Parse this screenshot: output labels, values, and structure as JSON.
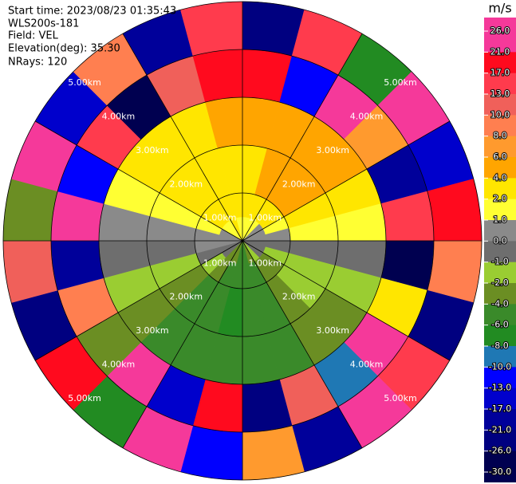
{
  "chart_data": {
    "type": "ppi",
    "header": [
      "Start time: 2023/08/23 01:35:43",
      "WLS200s-181",
      "Field: VEL",
      "Elevation(deg): 35.30",
      "NRays: 120"
    ],
    "range_rings": [
      {
        "value": 1,
        "label": "1.00km"
      },
      {
        "value": 2,
        "label": "2.00km"
      },
      {
        "value": 3,
        "label": "3.00km"
      },
      {
        "value": 4,
        "label": "4.00km"
      },
      {
        "value": 5,
        "label": "5.00km"
      }
    ],
    "range_edges_km": [
      0,
      0.5,
      1,
      2,
      3,
      4,
      5
    ],
    "azimuth_edges_deg": [
      0,
      15,
      30,
      45,
      60,
      75,
      90,
      105,
      120,
      135,
      150,
      165,
      180,
      195,
      210,
      225,
      240,
      255,
      270,
      285,
      300,
      315,
      330,
      345,
      360
    ],
    "velocity": [
      [
        1,
        1,
        1,
        0.5,
        0,
        0,
        -0.5,
        -1,
        -1,
        -2,
        -4,
        -5,
        -5,
        -4,
        -3,
        -1,
        -0.5,
        0,
        0,
        0.5,
        1,
        1,
        2,
        1
      ],
      [
        3,
        3,
        3,
        2,
        1,
        0.5,
        -0.5,
        -1.5,
        -3,
        -3,
        -5,
        -5,
        -5,
        -5,
        -3,
        -2,
        -0.5,
        0,
        0.5,
        1.5,
        3,
        3,
        3,
        3
      ],
      [
        3,
        5,
        5,
        5,
        3,
        1,
        -0.5,
        -1.5,
        -2,
        -3,
        -5,
        -5,
        -7,
        -5,
        -5,
        -3,
        -1.5,
        -0.5,
        0.5,
        1.5,
        3,
        3,
        3,
        3
      ],
      [
        5,
        5,
        5,
        5,
        3,
        1,
        -0.5,
        -1.5,
        -3,
        -3,
        -5,
        -5,
        -5,
        -5,
        -5,
        -3,
        -1.5,
        -0.5,
        0.5,
        1.5,
        3,
        3,
        3,
        5
      ],
      [
        18,
        -12,
        24,
        7,
        -20,
        15,
        -27,
        3,
        22,
        -9,
        12,
        -24,
        19,
        -15,
        27,
        -3,
        9,
        -19,
        23,
        -11,
        16,
        -28,
        11,
        20
      ],
      [
        -22,
        14,
        -8,
        25,
        -16,
        20,
        9,
        -25,
        13,
        24,
        -18,
        6,
        -11,
        22,
        -7,
        17,
        -26,
        12,
        -4,
        26,
        -14,
        8,
        -21,
        15
      ]
    ],
    "colorbar": {
      "unit": "m/s",
      "ticks": [
        {
          "value": 26,
          "label": "26.0"
        },
        {
          "value": 21,
          "label": "21.0"
        },
        {
          "value": 17,
          "label": "17.0"
        },
        {
          "value": 13,
          "label": "13.0"
        },
        {
          "value": 10,
          "label": "10.0"
        },
        {
          "value": 8,
          "label": "8.0"
        },
        {
          "value": 6,
          "label": "6.0"
        },
        {
          "value": 4,
          "label": "4.0"
        },
        {
          "value": 2,
          "label": "2.0"
        },
        {
          "value": 1,
          "label": "1.0"
        },
        {
          "value": 0,
          "label": "0.0"
        },
        {
          "value": -1,
          "label": "-1.0"
        },
        {
          "value": -2,
          "label": "-2.0"
        },
        {
          "value": -4,
          "label": "-4.0"
        },
        {
          "value": -6,
          "label": "-6.0"
        },
        {
          "value": -8,
          "label": "-8.0"
        },
        {
          "value": -10,
          "label": "-10.0"
        },
        {
          "value": -13,
          "label": "-13.0"
        },
        {
          "value": -17,
          "label": "-17.0"
        },
        {
          "value": -21,
          "label": "-21.0"
        },
        {
          "value": -26,
          "label": "-26.0"
        },
        {
          "value": -30,
          "label": "-30.0"
        }
      ],
      "colors": [
        "#f5399a",
        "#ff0a1e",
        "#ff3b4d",
        "#f0605a",
        "#ff7f50",
        "#ff9a2e",
        "#ffa500",
        "#ffe600",
        "#ffff33",
        "#8a8a8a",
        "#6e6e6e",
        "#9acd32",
        "#6b8e23",
        "#3a8a2a",
        "#228b22",
        "#1f78b4",
        "#0000ff",
        "#0000cc",
        "#00009a",
        "#000080",
        "#000050"
      ]
    }
  }
}
